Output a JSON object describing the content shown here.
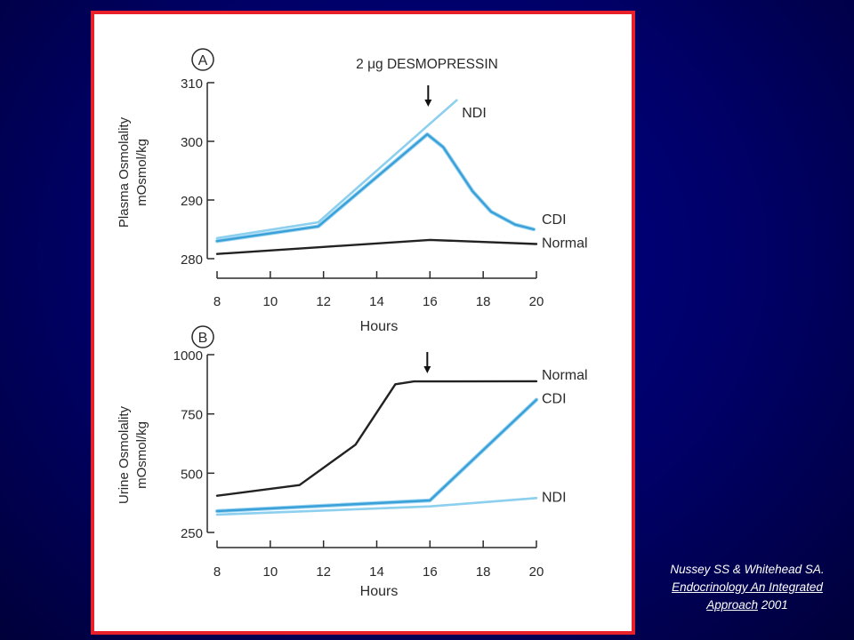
{
  "citation": {
    "line1": "Nussey SS & Whitehead SA.",
    "line2": "Endocrinology An Integrated",
    "line3_underlined": "Approach",
    "line3_rest": " 2001"
  },
  "colors": {
    "frame_border": "#e8202a",
    "background": "#000080",
    "normal_line": "#222222",
    "cdi_line": "#3aa0d8",
    "ndi_line": "#8ccfee"
  },
  "chart_data": [
    {
      "type": "line",
      "panel_label": "A",
      "annotation": "2 μg DESMOPRESSIN",
      "annotation_x": 16,
      "xlabel": "Hours",
      "ylabel": [
        "Plasma Osmolality",
        "mOsmol/kg"
      ],
      "xlim": [
        8,
        20
      ],
      "ylim": [
        280,
        310
      ],
      "x_ticks": [
        8,
        10,
        12,
        14,
        16,
        18,
        20
      ],
      "y_ticks": [
        280,
        290,
        300,
        310
      ],
      "grid": false,
      "legend": "labels at line ends (right)",
      "series": [
        {
          "name": "NDI",
          "color": "#8ccfee",
          "points": [
            [
              8,
              283.5
            ],
            [
              11.8,
              286.2
            ],
            [
              16,
              303
            ],
            [
              17,
              307
            ]
          ]
        },
        {
          "name": "CDI",
          "color": "#3aa0d8",
          "points": [
            [
              8,
              283
            ],
            [
              11.8,
              285.5
            ],
            [
              15.9,
              301.2
            ],
            [
              16.5,
              299
            ],
            [
              17.6,
              291.5
            ],
            [
              18.3,
              288
            ],
            [
              19.2,
              285.8
            ],
            [
              19.9,
              285
            ]
          ]
        },
        {
          "name": "Normal",
          "color": "#222222",
          "points": [
            [
              8,
              280.8
            ],
            [
              12,
              282
            ],
            [
              16,
              283.2
            ],
            [
              20,
              282.5
            ]
          ]
        }
      ]
    },
    {
      "type": "line",
      "panel_label": "B",
      "annotation_x": 16,
      "xlabel": "Hours",
      "ylabel": [
        "Urine Osmolality",
        "mOsmol/kg"
      ],
      "xlim": [
        8,
        20
      ],
      "ylim": [
        250,
        1000
      ],
      "x_ticks": [
        8,
        10,
        12,
        14,
        16,
        18,
        20
      ],
      "y_ticks": [
        250,
        500,
        750,
        1000
      ],
      "grid": false,
      "legend": "labels at line ends (right)",
      "series": [
        {
          "name": "Normal",
          "color": "#222222",
          "points": [
            [
              8,
              405
            ],
            [
              11.1,
              450
            ],
            [
              13.2,
              620
            ],
            [
              14.7,
              875
            ],
            [
              15.4,
              887
            ],
            [
              16.5,
              887
            ],
            [
              20,
              888
            ]
          ]
        },
        {
          "name": "CDI",
          "color": "#3aa0d8",
          "points": [
            [
              8,
              340
            ],
            [
              16,
              385
            ],
            [
              20,
              810
            ]
          ]
        },
        {
          "name": "NDI",
          "color": "#8ccfee",
          "points": [
            [
              8,
              325
            ],
            [
              16,
              360
            ],
            [
              20,
              395
            ]
          ]
        }
      ]
    }
  ]
}
